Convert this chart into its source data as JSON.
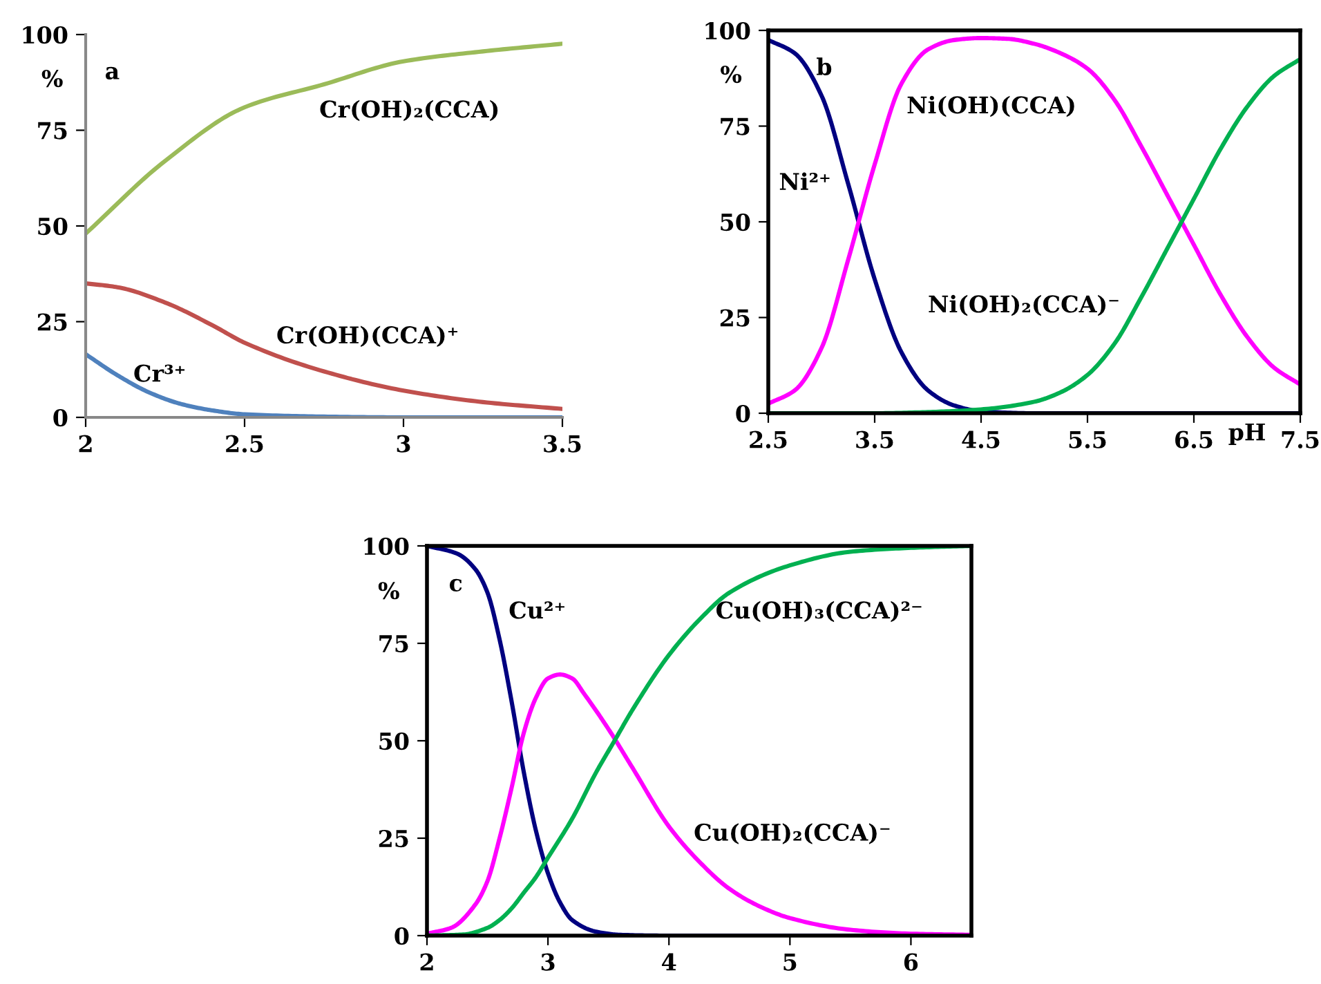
{
  "chart_data": [
    {
      "type": "line",
      "ylabel": "%",
      "xlim": [
        2,
        3.5
      ],
      "ylim": [
        0,
        100
      ],
      "xticks": [
        2,
        2.5,
        3,
        3.5
      ],
      "yticks": [
        0,
        25,
        50,
        75,
        100
      ],
      "series": [
        {
          "name": "Cr(OH)₂(CCA)",
          "color": "#9bbb59",
          "x": [
            2,
            2.25,
            2.5,
            2.75,
            3,
            3.25,
            3.5
          ],
          "values": [
            48,
            67,
            81,
            87,
            93,
            95.6,
            97.6
          ]
        },
        {
          "name": "Cr(OH)(CCA)⁺",
          "color": "#c0504d",
          "x": [
            2,
            2.1,
            2.25,
            2.4,
            2.5,
            2.75,
            3,
            3.25,
            3.5
          ],
          "values": [
            35,
            34,
            30,
            24,
            19.5,
            12,
            7,
            4,
            2.2
          ]
        },
        {
          "name": "Cr³⁺",
          "color": "#4f81bd",
          "x": [
            2,
            2.1,
            2.2,
            2.3,
            2.4,
            2.5,
            2.75,
            3,
            3.5
          ],
          "values": [
            16.5,
            11,
            6.5,
            3.5,
            1.8,
            0.8,
            0.2,
            0,
            0
          ]
        }
      ],
      "annotations": [
        "a"
      ]
    },
    {
      "type": "line",
      "ylabel": "%",
      "xlabel": "pH",
      "xlim": [
        2.5,
        7.5
      ],
      "ylim": [
        0,
        100
      ],
      "xticks": [
        2.5,
        3.5,
        4.5,
        5.5,
        6.5,
        7.5
      ],
      "yticks": [
        0,
        25,
        50,
        75,
        100
      ],
      "series": [
        {
          "name": "Ni²⁺",
          "color": "#000080",
          "x": [
            2.5,
            2.75,
            3,
            3.25,
            3.5,
            3.75,
            4,
            4.25,
            4.5,
            5,
            7.5
          ],
          "values": [
            97.5,
            94,
            83,
            60,
            35,
            16,
            6,
            2,
            0.5,
            0,
            0
          ]
        },
        {
          "name": "Ni(OH)(CCA)",
          "color": "#ff00ff",
          "x": [
            2.5,
            2.75,
            3,
            3.25,
            3.5,
            3.75,
            4,
            4.25,
            4.5,
            4.75,
            5,
            5.25,
            5.5,
            5.75,
            6,
            6.25,
            6.5,
            6.75,
            7,
            7.25,
            7.5
          ],
          "values": [
            2.5,
            6,
            17,
            40,
            65,
            86,
            95,
            97.5,
            98,
            97.8,
            96.5,
            94,
            90,
            82,
            70,
            57,
            44,
            31,
            20,
            12,
            7.5
          ]
        },
        {
          "name": "Ni(OH)₂(CCA)⁻",
          "color": "#00b050",
          "x": [
            2.5,
            3.5,
            4,
            4.5,
            5,
            5.25,
            5.5,
            5.75,
            6,
            6.25,
            6.5,
            6.75,
            7,
            7.25,
            7.5
          ],
          "values": [
            0,
            0,
            0.3,
            1,
            3,
            5.5,
            10,
            18,
            30,
            43,
            56,
            69,
            80,
            88,
            92.5
          ]
        }
      ],
      "annotations": [
        "b"
      ]
    },
    {
      "type": "line",
      "ylabel": "%",
      "xlim": [
        2,
        6.5
      ],
      "ylim": [
        0,
        100
      ],
      "xticks": [
        2,
        3,
        4,
        5,
        6
      ],
      "yticks": [
        0,
        25,
        50,
        75,
        100
      ],
      "series": [
        {
          "name": "Cu²⁺",
          "color": "#000080",
          "x": [
            2,
            2.25,
            2.4,
            2.5,
            2.6,
            2.7,
            2.8,
            2.9,
            3,
            3.1,
            3.2,
            3.4,
            3.6,
            4,
            6.5
          ],
          "values": [
            100,
            98,
            94,
            88,
            76,
            60,
            42,
            27,
            16,
            8.5,
            4,
            1,
            0.2,
            0,
            0
          ]
        },
        {
          "name": "Cu(OH)₂(CCA)⁻",
          "color": "#ff00ff",
          "x": [
            2,
            2.2,
            2.4,
            2.5,
            2.6,
            2.7,
            2.8,
            2.9,
            3,
            3.1,
            3.2,
            3.3,
            3.5,
            3.7,
            4,
            4.25,
            4.5,
            4.75,
            5,
            5.5,
            6,
            6.5
          ],
          "values": [
            0.5,
            2,
            8,
            14,
            25,
            38,
            52,
            61,
            66,
            67,
            66,
            62,
            53,
            43,
            28,
            19,
            12,
            7.5,
            4.5,
            1.5,
            0.5,
            0.2
          ]
        },
        {
          "name": "Cu(OH)₃(CCA)²⁻",
          "color": "#00b050",
          "x": [
            2,
            2.3,
            2.5,
            2.6,
            2.7,
            2.8,
            2.9,
            3,
            3.2,
            3.4,
            3.55,
            3.7,
            4,
            4.25,
            4.5,
            5,
            5.5,
            6,
            6.5
          ],
          "values": [
            0,
            0.3,
            2,
            4,
            7,
            11,
            15,
            20,
            30,
            42,
            50,
            58,
            72,
            81,
            88,
            95,
            98.5,
            99.5,
            100
          ]
        }
      ],
      "annotations": [
        "c"
      ]
    }
  ]
}
